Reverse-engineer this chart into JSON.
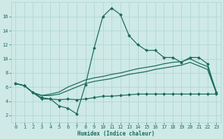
{
  "x": [
    0,
    1,
    2,
    3,
    4,
    5,
    6,
    7,
    8,
    9,
    10,
    11,
    12,
    13,
    14,
    15,
    16,
    17,
    18,
    19,
    20,
    21,
    22,
    23
  ],
  "line_max": [
    6.5,
    6.2,
    5.2,
    4.5,
    4.3,
    3.3,
    3.0,
    2.2,
    6.3,
    11.5,
    16.0,
    17.2,
    16.3,
    13.3,
    12.0,
    11.2,
    11.2,
    10.2,
    10.2,
    9.5,
    10.2,
    10.2,
    9.3,
    5.2
  ],
  "line_min": [
    6.5,
    6.2,
    5.2,
    4.3,
    4.3,
    4.2,
    4.3,
    4.2,
    4.3,
    4.5,
    4.7,
    4.7,
    4.8,
    4.9,
    5.0,
    5.0,
    5.0,
    5.0,
    5.0,
    5.0,
    5.0,
    5.0,
    5.0,
    5.0
  ],
  "line_mean_low": [
    6.5,
    6.2,
    5.2,
    4.8,
    4.8,
    5.0,
    5.5,
    6.0,
    6.5,
    6.8,
    7.0,
    7.2,
    7.5,
    7.8,
    8.0,
    8.2,
    8.5,
    8.7,
    8.9,
    9.1,
    9.5,
    9.0,
    8.5,
    5.2
  ],
  "line_mean_high": [
    6.5,
    6.2,
    5.2,
    4.8,
    5.0,
    5.3,
    6.0,
    6.5,
    7.0,
    7.3,
    7.5,
    7.8,
    8.0,
    8.3,
    8.6,
    8.8,
    9.0,
    9.3,
    9.5,
    9.6,
    10.0,
    9.4,
    8.9,
    5.4
  ],
  "color": "#1a6b5a",
  "bg_color": "#cee9e6",
  "grid_color": "#aad4d0",
  "xlabel": "Humidex (Indice chaleur)",
  "ylim": [
    1,
    18
  ],
  "xlim": [
    -0.5,
    23.5
  ],
  "yticks": [
    2,
    4,
    6,
    8,
    10,
    12,
    14,
    16
  ],
  "xticks": [
    0,
    1,
    2,
    3,
    4,
    5,
    6,
    7,
    8,
    9,
    10,
    11,
    12,
    13,
    14,
    15,
    16,
    17,
    18,
    19,
    20,
    21,
    22,
    23
  ],
  "marker_indices_max": [
    0,
    1,
    2,
    3,
    4,
    5,
    6,
    7,
    8,
    9,
    10,
    11,
    12,
    13,
    14,
    15,
    16,
    17,
    18,
    19,
    20,
    21,
    22,
    23
  ],
  "marker_indices_min": [
    0,
    1,
    2,
    3,
    4,
    5,
    6,
    7,
    8,
    9,
    10,
    11,
    12,
    13,
    14,
    15,
    16,
    17,
    18,
    19,
    20,
    21,
    22,
    23
  ]
}
